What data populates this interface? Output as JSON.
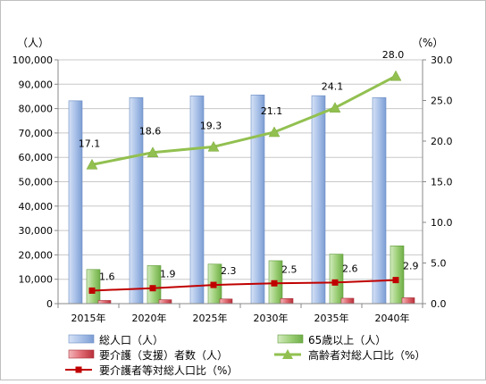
{
  "chart_data": {
    "type": "bar+line",
    "categories": [
      "2015年",
      "2020年",
      "2025年",
      "2030年",
      "2035年",
      "2040年"
    ],
    "left_axis": {
      "unit_label": "（人）",
      "min": 0,
      "max": 100000,
      "step": 10000,
      "tick_labels": [
        "0",
        "10,000",
        "20,000",
        "30,000",
        "40,000",
        "50,000",
        "60,000",
        "70,000",
        "80,000",
        "90,000",
        "100,000"
      ]
    },
    "right_axis": {
      "unit_label": "（%）",
      "min": 0,
      "max": 30,
      "step": 5,
      "tick_labels": [
        "0.0",
        "5.0",
        "10.0",
        "15.0",
        "20.0",
        "25.0",
        "30.0"
      ]
    },
    "bar_series": [
      {
        "name": "総人口（人）",
        "values": [
          83200,
          84500,
          85200,
          85600,
          85300,
          84500
        ],
        "color": "#9db7e0"
      },
      {
        "name": "65歳以上（人）",
        "values": [
          14000,
          15600,
          16200,
          17600,
          20300,
          23700
        ],
        "color": "#8fc56a"
      },
      {
        "name": "要介護（支援）者数（人）",
        "values": [
          1300,
          1600,
          1900,
          2100,
          2200,
          2400
        ],
        "color": "#d9505a"
      }
    ],
    "line_series": [
      {
        "name": "高齢者対総人口比（%）",
        "values": [
          17.1,
          18.6,
          19.3,
          21.1,
          24.1,
          28.0
        ],
        "labels": [
          "17.1",
          "18.6",
          "19.3",
          "21.1",
          "24.1",
          "28.0"
        ],
        "color": "#92c050",
        "marker": "triangle"
      },
      {
        "name": "要介護者等対総人口比（%）",
        "values": [
          1.6,
          1.9,
          2.3,
          2.5,
          2.6,
          2.9
        ],
        "labels": [
          "1.6",
          "1.9",
          "2.3",
          "2.5",
          "2.6",
          "2.9"
        ],
        "color": "#c00000",
        "marker": "square"
      }
    ],
    "grid": true,
    "legend_position": "bottom"
  }
}
